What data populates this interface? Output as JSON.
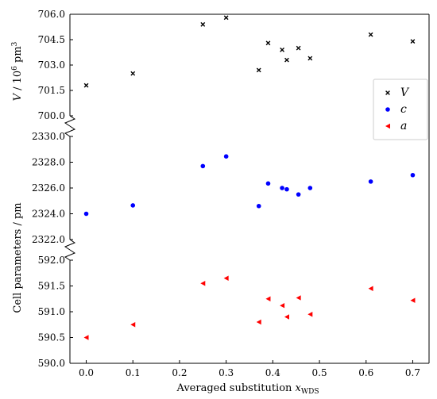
{
  "chart_data": {
    "type": "scatter",
    "xlabel": "Averaged substitution x_WDS",
    "xlabel_main": "Averaged substitution ",
    "xlabel_var": "x",
    "xlabel_sub": "WDS",
    "x_ticks": [
      "0.0",
      "0.1",
      "0.2",
      "0.3",
      "0.4",
      "0.5",
      "0.6",
      "0.7"
    ],
    "x_tick_values": [
      0.0,
      0.1,
      0.2,
      0.3,
      0.4,
      0.5,
      0.6,
      0.7
    ],
    "xlim": [
      -0.035,
      0.735
    ],
    "x": [
      0.0,
      0.1,
      0.25,
      0.3,
      0.37,
      0.39,
      0.42,
      0.43,
      0.455,
      0.48,
      0.61,
      0.7
    ],
    "panels": [
      {
        "name": "V",
        "ylabel": "V / 10^6 pm^3",
        "ylabel_var": "V",
        "ylabel_rest": " / 10",
        "ylabel_exp1": "6",
        "ylabel_unit": " pm",
        "ylabel_exp2": "3",
        "ylim": [
          700.0,
          706.0
        ],
        "y_ticks": [
          "700.0",
          "701.5",
          "703.0",
          "704.5",
          "706.0"
        ],
        "y_tick_values": [
          700.0,
          701.5,
          703.0,
          704.5,
          706.0
        ],
        "marker": "x",
        "color": "#000000",
        "values": [
          701.8,
          702.5,
          705.4,
          705.8,
          702.7,
          704.3,
          703.9,
          703.3,
          704.0,
          703.4,
          704.8,
          704.4
        ]
      },
      {
        "name": "c",
        "ylim": [
          2322.0,
          2330.0
        ],
        "y_ticks": [
          "2322.0",
          "2324.0",
          "2326.0",
          "2328.0",
          "2330.0"
        ],
        "y_tick_values": [
          2322.0,
          2324.0,
          2326.0,
          2328.0,
          2330.0
        ],
        "marker": "circle",
        "color": "#0000ff",
        "values": [
          2324.0,
          2324.65,
          2327.7,
          2328.45,
          2324.6,
          2326.35,
          2326.0,
          2325.9,
          2325.5,
          2326.0,
          2326.5,
          2327.0
        ]
      },
      {
        "name": "a",
        "ylim": [
          590.0,
          592.0
        ],
        "y_ticks": [
          "590.0",
          "590.5",
          "591.0",
          "591.5",
          "592.0"
        ],
        "y_tick_values": [
          590.0,
          590.5,
          591.0,
          591.5,
          592.0
        ],
        "marker": "triangle-left",
        "color": "#ff0000",
        "values": [
          590.5,
          590.75,
          591.55,
          591.65,
          590.8,
          591.25,
          591.12,
          590.9,
          591.27,
          590.95,
          591.45,
          591.22
        ]
      }
    ],
    "shared_ylabel": "Cell parameters / pm",
    "legend": {
      "placement": "right",
      "entries": [
        {
          "label": "V",
          "marker": "x",
          "color": "#000000"
        },
        {
          "label": "c",
          "marker": "circle",
          "color": "#0000ff"
        },
        {
          "label": "a",
          "marker": "triangle-left",
          "color": "#ff0000"
        }
      ]
    },
    "grid": false
  }
}
